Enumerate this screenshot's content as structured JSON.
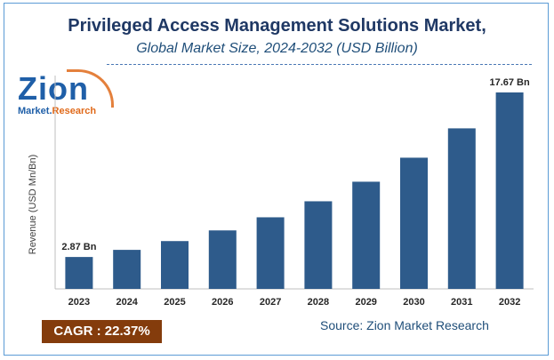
{
  "title": "Privileged Access Management Solutions Market,",
  "subtitle": "Global Market Size, 2024-2032 (USD Billion)",
  "logo": {
    "name": "Zion",
    "sub_left": "Market.",
    "sub_right": "Research"
  },
  "cagr": "CAGR : 22.37%",
  "source": "Source: Zion Market Research",
  "colors": {
    "bar": "#2e5b8b",
    "title": "#1f3864",
    "cagr_bg": "#843c0c",
    "border": "#5b9bd5"
  },
  "chart_data": {
    "type": "bar",
    "title": "Privileged Access Management Solutions Market,",
    "subtitle": "Global Market Size, 2024-2032 (USD Billion)",
    "xlabel": "",
    "ylabel": "Revenue (USD Mn/Bn)",
    "categories": [
      "2023",
      "2024",
      "2025",
      "2026",
      "2027",
      "2028",
      "2029",
      "2030",
      "2031",
      "2032"
    ],
    "values": [
      2.87,
      3.51,
      4.3,
      5.26,
      6.44,
      7.88,
      9.64,
      11.8,
      14.44,
      17.67
    ],
    "data_labels": [
      {
        "index": 0,
        "text": "2.87 Bn"
      },
      {
        "index": 9,
        "text": "17.67 Bn"
      }
    ],
    "ylim": [
      0,
      17.67
    ],
    "grid": false,
    "legend": "none"
  }
}
